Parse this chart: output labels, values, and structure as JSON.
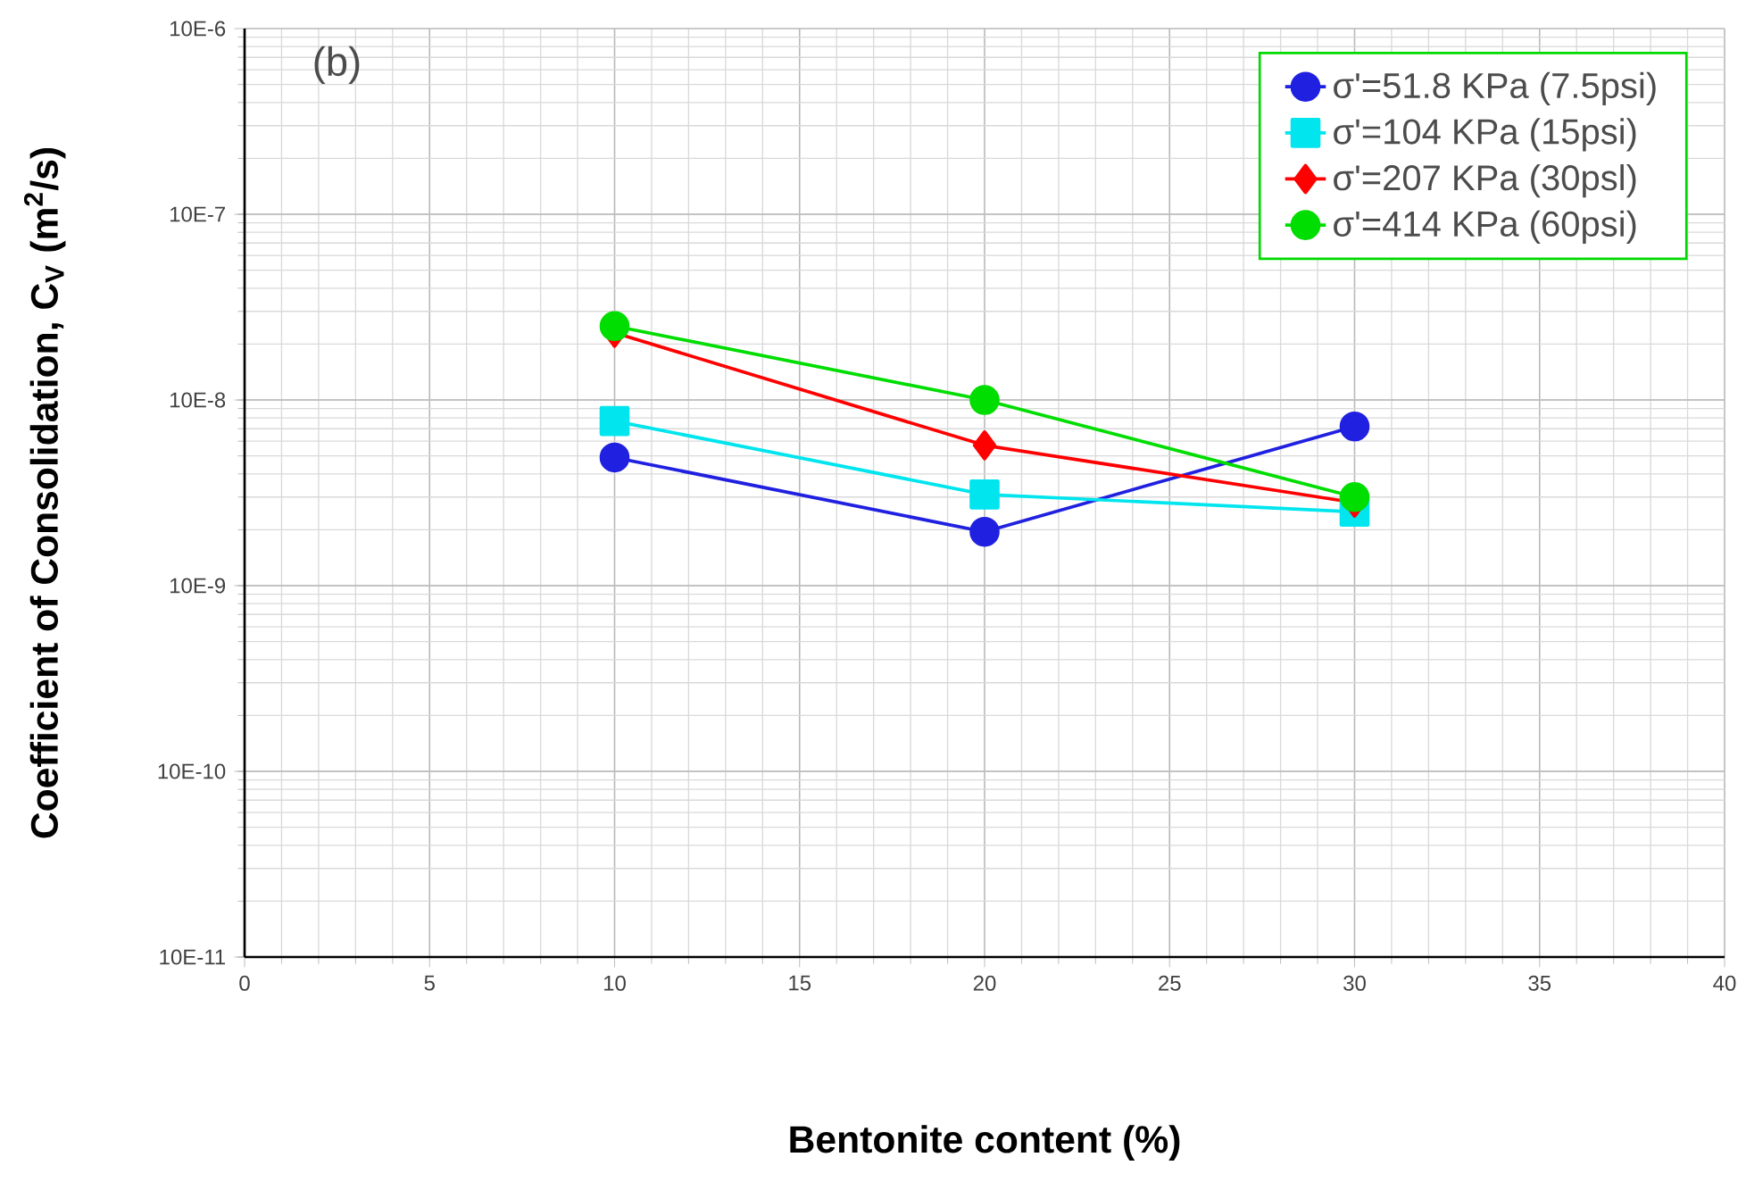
{
  "chart_data": {
    "type": "line",
    "xlabel": "Bentonite content (%)",
    "ylabel": "Coefficient of Consolidation, C$_{V}$ (m$^{2}$/s)",
    "annotations": [
      "(b)"
    ],
    "x": [
      10,
      20,
      30
    ],
    "series": [
      {
        "name": "σ'=51.8 KPa (7.5psi)",
        "color": "#2020e0",
        "marker": "circle",
        "values": [
          4.9e-08,
          1.95e-08,
          7.2e-08
        ]
      },
      {
        "name": "σ'=104 KPa (15psi)",
        "color": "#00e5ee",
        "marker": "square",
        "values": [
          7.7e-08,
          3.1e-08,
          2.5e-08
        ]
      },
      {
        "name": "σ'=207 KPa (30psl)",
        "color": "#ff0000",
        "marker": "diamond",
        "values": [
          2.3e-07,
          5.7e-08,
          2.8e-08
        ]
      },
      {
        "name": "σ'=414 KPa (60psi)",
        "color": "#00dd00",
        "marker": "circle",
        "values": [
          2.5e-07,
          1e-07,
          3e-08
        ]
      }
    ],
    "log": "y",
    "xlim": [
      0,
      40
    ],
    "xticks": [
      0,
      5,
      10,
      15,
      20,
      25,
      30,
      35,
      40
    ],
    "ylim": [
      1e-10,
      1e-05
    ],
    "yticks": [
      {
        "value": 1e-10,
        "label": "10E-11"
      },
      {
        "value": 1e-09,
        "label": "10E-10"
      },
      {
        "value": 1e-08,
        "label": "10E-9"
      },
      {
        "value": 1e-07,
        "label": "10E-8"
      },
      {
        "value": 1e-06,
        "label": "10E-7"
      },
      {
        "value": 1e-05,
        "label": "10E-6"
      }
    ],
    "grid": true,
    "legend": "top right",
    "line_style": "solid"
  }
}
